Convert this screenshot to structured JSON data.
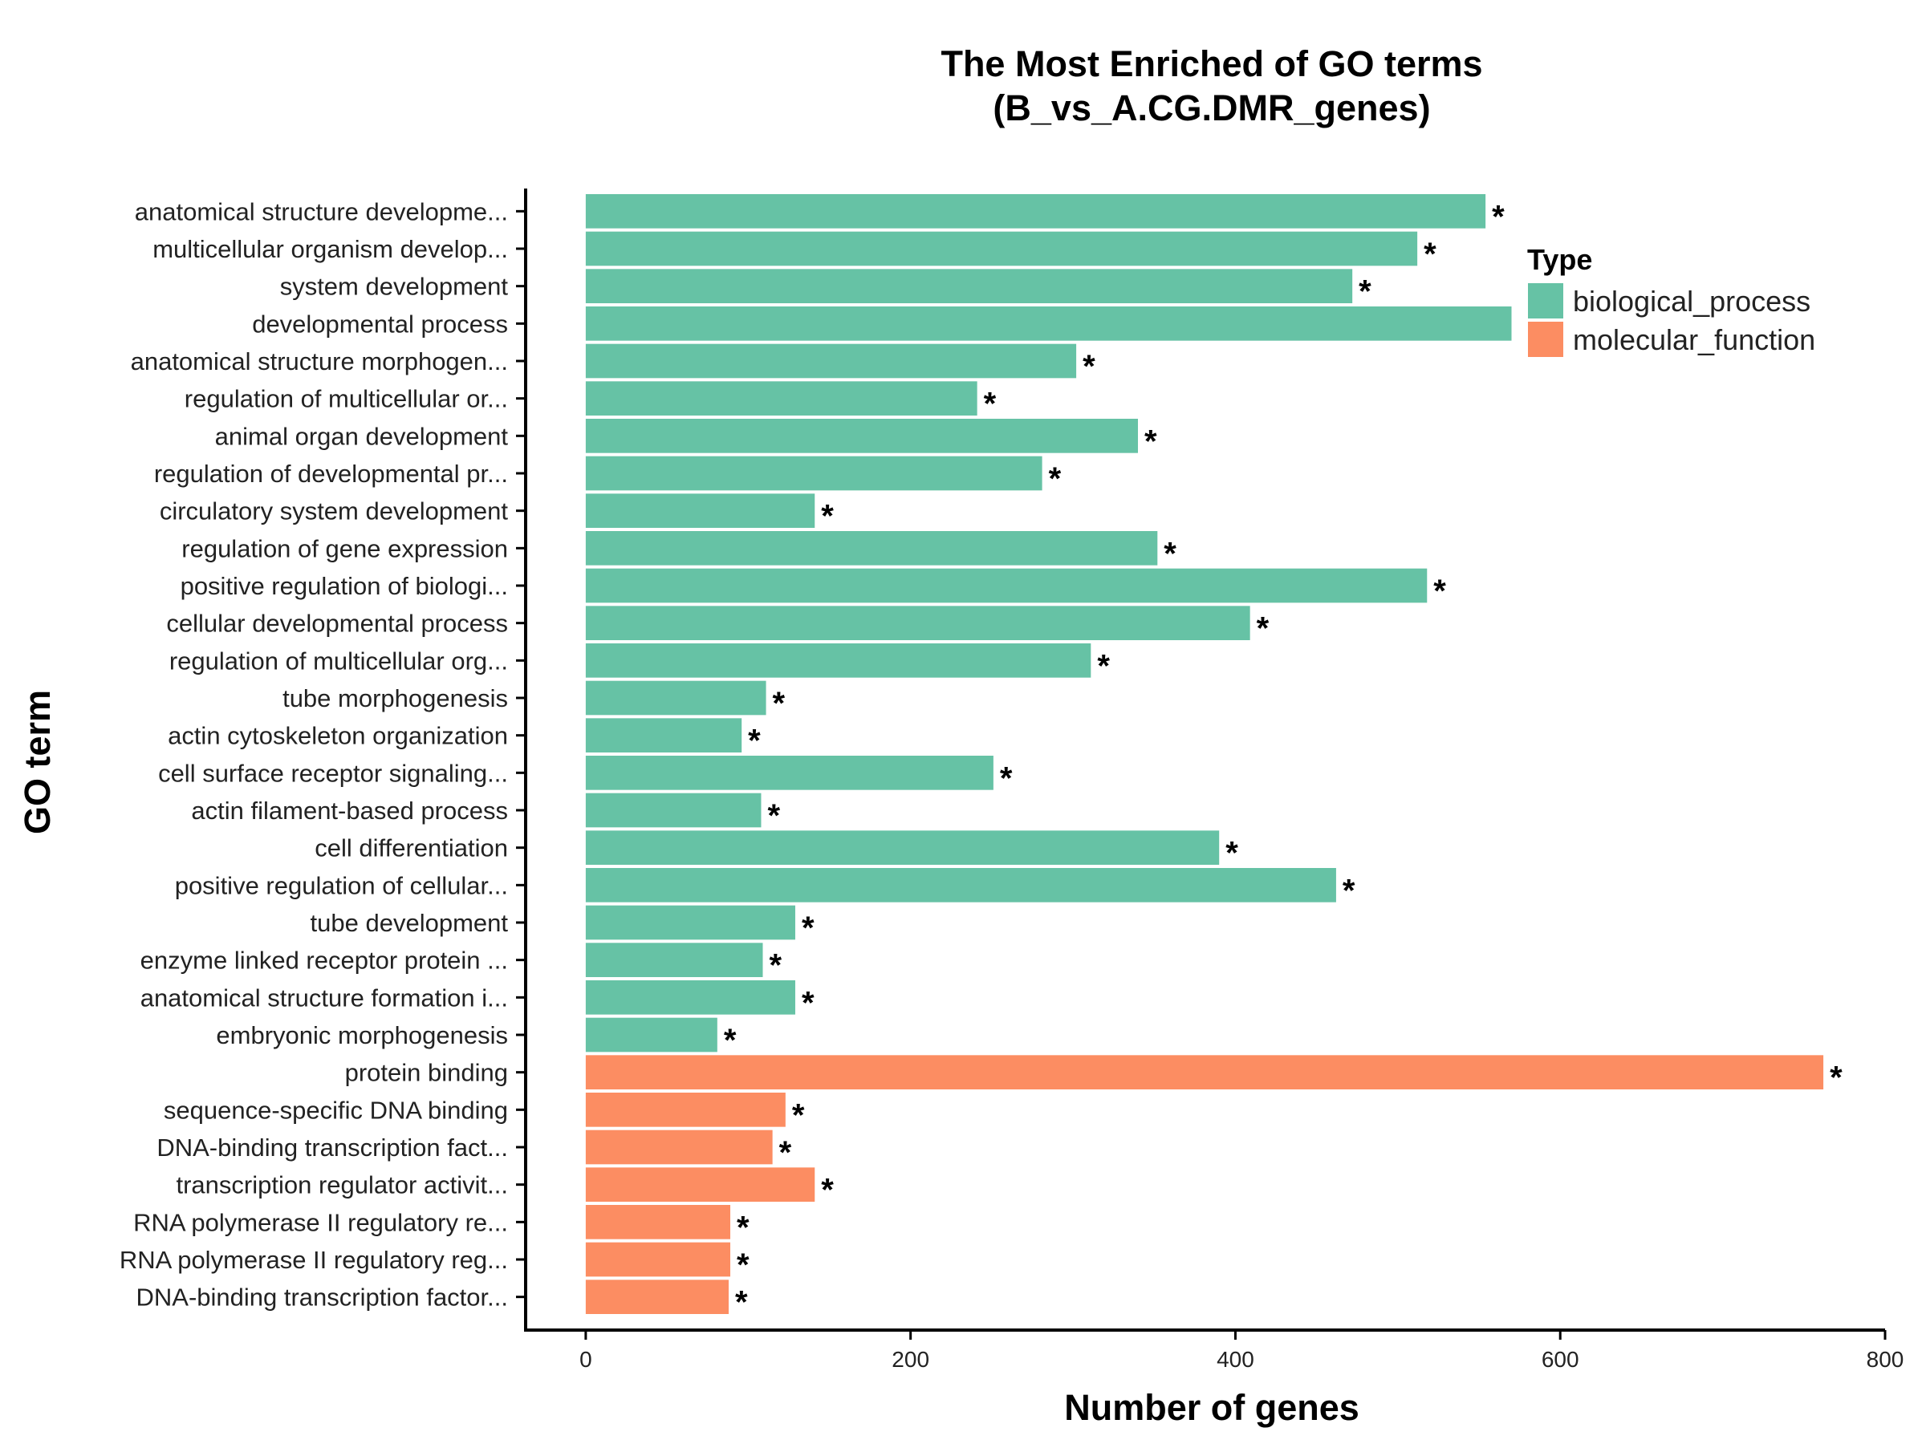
{
  "chart_data": {
    "type": "bar",
    "orientation": "horizontal",
    "title_line1": "The Most Enriched of GO terms",
    "title_line2": "(B_vs_A.CG.DMR_genes)",
    "xlabel": "Number of genes",
    "ylabel": "GO term",
    "xlim": [
      -37,
      800
    ],
    "xticks": [
      0,
      200,
      400,
      600,
      800
    ],
    "grid": false,
    "legend": {
      "title": "Type",
      "position": "top-right",
      "entries": [
        {
          "name": "biological_process",
          "color": "#66C2A5"
        },
        {
          "name": "molecular_function",
          "color": "#FC8D62"
        }
      ]
    },
    "categories": [
      "anatomical structure developme...",
      "multicellular organism develop...",
      "system development",
      "developmental process",
      "anatomical structure morphogen...",
      "regulation of multicellular or...",
      "animal organ development",
      "regulation of developmental pr...",
      "circulatory system development",
      "regulation of gene expression",
      "positive regulation of biologi...",
      "cellular developmental process",
      "regulation of multicellular org...",
      "tube morphogenesis",
      "actin cytoskeleton organization",
      "cell surface receptor signaling...",
      "actin filament-based process",
      "cell differentiation",
      "positive regulation of cellular...",
      "tube development",
      "enzyme linked receptor protein ...",
      "anatomical structure formation i...",
      "embryonic morphogenesis",
      "protein binding",
      "sequence-specific DNA binding",
      "DNA-binding transcription fact...",
      "transcription regulator activit...",
      "RNA polymerase II regulatory re...",
      "RNA polymerase II regulatory reg...",
      "DNA-binding transcription factor..."
    ],
    "values": [
      554,
      512,
      472,
      570,
      302,
      241,
      340,
      281,
      141,
      352,
      518,
      409,
      311,
      111,
      96,
      251,
      108,
      390,
      462,
      129,
      109,
      129,
      81,
      762,
      123,
      115,
      141,
      89,
      89,
      88
    ],
    "types": [
      "biological_process",
      "biological_process",
      "biological_process",
      "biological_process",
      "biological_process",
      "biological_process",
      "biological_process",
      "biological_process",
      "biological_process",
      "biological_process",
      "biological_process",
      "biological_process",
      "biological_process",
      "biological_process",
      "biological_process",
      "biological_process",
      "biological_process",
      "biological_process",
      "biological_process",
      "biological_process",
      "biological_process",
      "biological_process",
      "biological_process",
      "molecular_function",
      "molecular_function",
      "molecular_function",
      "molecular_function",
      "molecular_function",
      "molecular_function",
      "molecular_function"
    ],
    "significant": [
      true,
      true,
      true,
      false,
      true,
      true,
      true,
      true,
      true,
      true,
      true,
      true,
      true,
      true,
      true,
      true,
      true,
      true,
      true,
      true,
      true,
      true,
      true,
      true,
      true,
      true,
      true,
      true,
      true,
      true
    ],
    "significance_mark": "*"
  }
}
